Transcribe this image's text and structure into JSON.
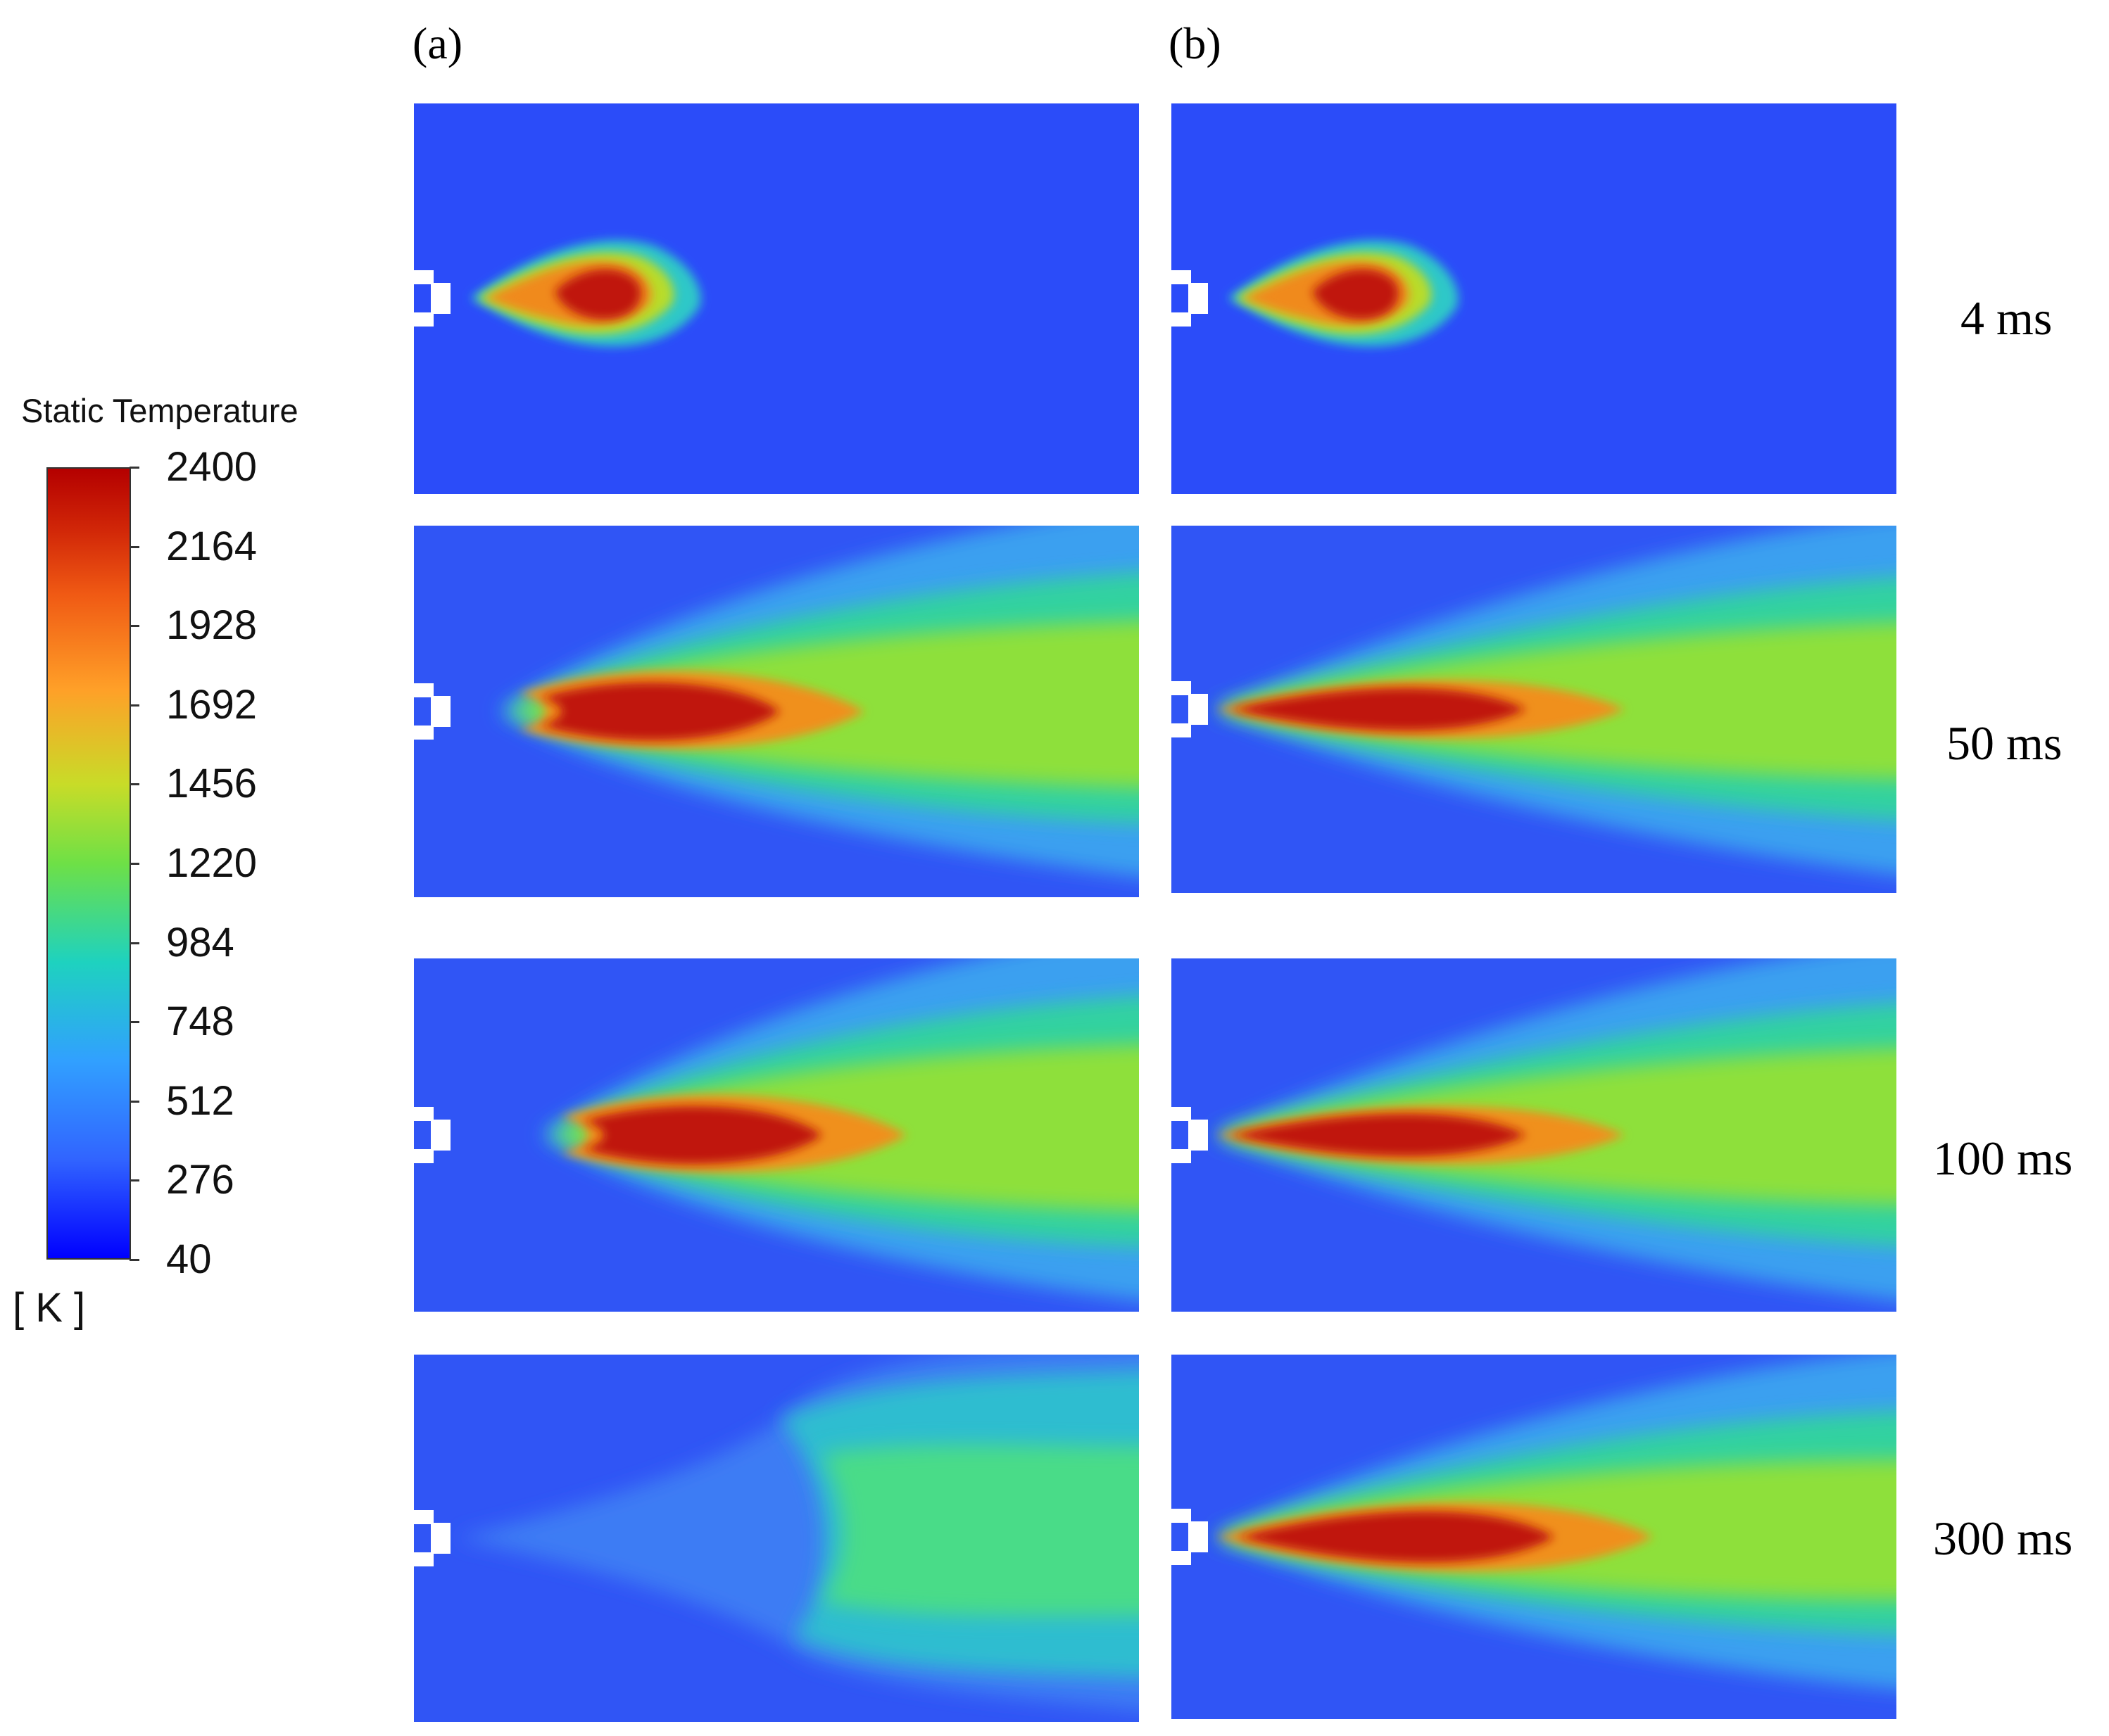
{
  "columns": [
    {
      "label": "(a)"
    },
    {
      "label": "(b)"
    }
  ],
  "rows": [
    {
      "time": "4 ms"
    },
    {
      "time": "50 ms"
    },
    {
      "time": "100 ms"
    },
    {
      "time": "300 ms"
    }
  ],
  "colorbar": {
    "title": "Static Temperature",
    "unit": "[ K ]",
    "min": 40,
    "max": 2400,
    "ticks": [
      "2400",
      "2164",
      "1928",
      "1692",
      "1456",
      "1220",
      "984",
      "748",
      "512",
      "276",
      "40"
    ],
    "colors": {
      "low": "#0000ff",
      "background_field": "#2b4cf9",
      "mid": "#6ee046",
      "high": "#b40000"
    }
  }
}
